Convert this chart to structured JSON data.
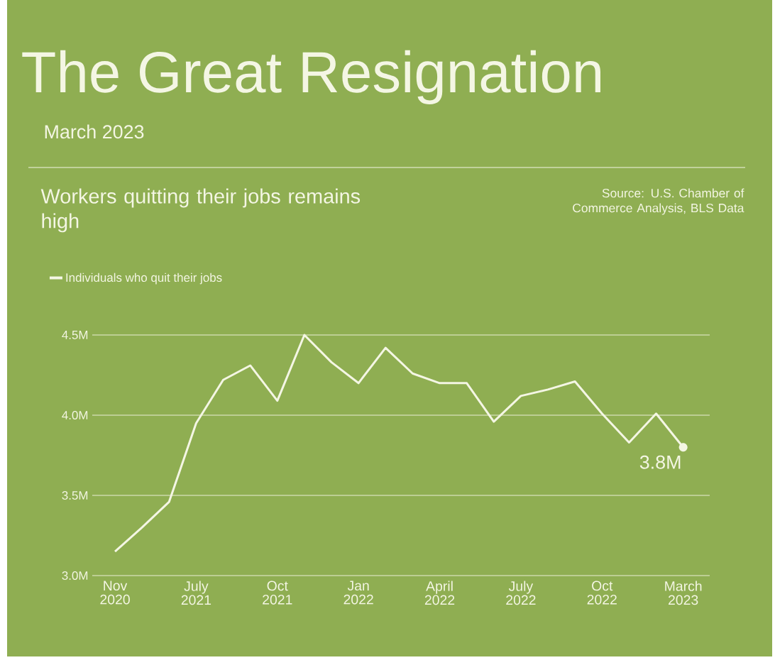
{
  "chart_data": {
    "type": "line",
    "title": "The Great Resignation",
    "subtitle": "March 2023",
    "categories": [
      "Nov 2020",
      null,
      null,
      "July 2021",
      null,
      null,
      "Oct 2021",
      null,
      null,
      "Jan 2022",
      null,
      null,
      "April 2022",
      null,
      null,
      "July 2022",
      null,
      null,
      "Oct 2022",
      null,
      null,
      "March 2023"
    ],
    "series": [
      {
        "name": "Individuals who quit their jobs",
        "color": "#f4f6e4",
        "values": [
          3.15,
          3.3,
          3.46,
          3.95,
          4.22,
          4.31,
          4.09,
          4.5,
          4.33,
          4.2,
          4.42,
          4.26,
          4.2,
          4.2,
          3.96,
          4.12,
          4.16,
          4.21,
          4.01,
          3.83,
          4.01,
          3.8
        ]
      }
    ],
    "ylim": [
      3.0,
      4.5
    ],
    "yticks": [
      {
        "value": 3.0,
        "label": "3.0M"
      },
      {
        "value": 3.5,
        "label": "3.5M"
      },
      {
        "value": 4.0,
        "label": "4.0M"
      },
      {
        "value": 4.5,
        "label": "4.5M"
      }
    ],
    "grid": "y",
    "legend": "top left",
    "annotations": [
      {
        "text": "3.8M",
        "x": "March 2023",
        "y": 3.8
      },
      "Workers quitting their jobs remains high",
      "Source: U.S. Chamber of Commerce Analysis, BLS Data"
    ]
  }
}
